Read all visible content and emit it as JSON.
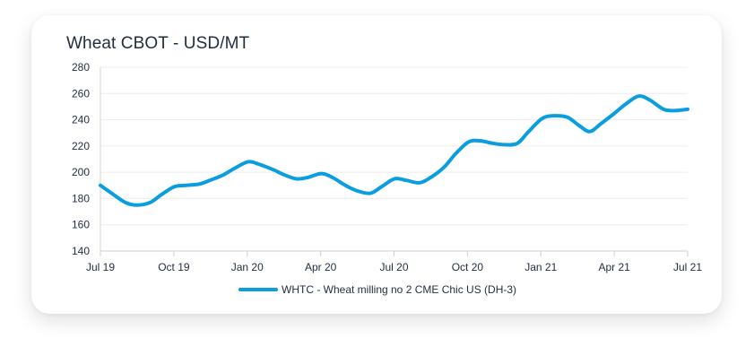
{
  "chart_data": {
    "type": "line",
    "title": "Wheat CBOT - USD/MT",
    "xlabel": "",
    "ylabel": "",
    "ylim": [
      140,
      280
    ],
    "yticks": [
      140,
      160,
      180,
      200,
      220,
      240,
      260,
      280
    ],
    "xticks": [
      "Jul 19",
      "Oct 19",
      "Jan 20",
      "Apr 20",
      "Jul 20",
      "Oct 20",
      "Jan 21",
      "Apr 21",
      "Jul 21"
    ],
    "grid": true,
    "legend_position": "bottom",
    "series": [
      {
        "name": "WHTC - Wheat milling no 2 CME Chic US (DH-3)",
        "color": "#0a9ee0",
        "x": [
          "2019-07-01",
          "2019-07-15",
          "2019-08-01",
          "2019-08-15",
          "2019-09-01",
          "2019-09-15",
          "2019-10-01",
          "2019-10-15",
          "2019-11-01",
          "2019-11-15",
          "2019-12-01",
          "2019-12-15",
          "2020-01-01",
          "2020-01-15",
          "2020-02-01",
          "2020-02-15",
          "2020-03-01",
          "2020-03-15",
          "2020-04-01",
          "2020-04-15",
          "2020-05-01",
          "2020-05-15",
          "2020-06-01",
          "2020-06-15",
          "2020-07-01",
          "2020-07-15",
          "2020-08-01",
          "2020-08-15",
          "2020-09-01",
          "2020-09-15",
          "2020-10-01",
          "2020-10-15",
          "2020-11-01",
          "2020-11-15",
          "2020-12-01",
          "2020-12-15",
          "2021-01-01",
          "2021-01-15",
          "2021-02-01",
          "2021-02-15",
          "2021-03-01",
          "2021-03-15",
          "2021-04-01",
          "2021-04-15",
          "2021-05-01",
          "2021-05-15",
          "2021-06-01",
          "2021-06-15",
          "2021-07-01"
        ],
        "values": [
          190,
          184,
          177,
          175,
          177,
          183,
          189,
          190,
          191,
          194,
          198,
          203,
          208,
          206,
          202,
          198,
          195,
          196,
          199,
          196,
          190,
          186,
          184,
          189,
          195,
          194,
          192,
          196,
          204,
          214,
          223,
          224,
          222,
          221,
          222,
          231,
          241,
          243,
          242,
          236,
          231,
          237,
          245,
          252,
          258,
          255,
          248,
          247,
          248
        ]
      }
    ]
  }
}
